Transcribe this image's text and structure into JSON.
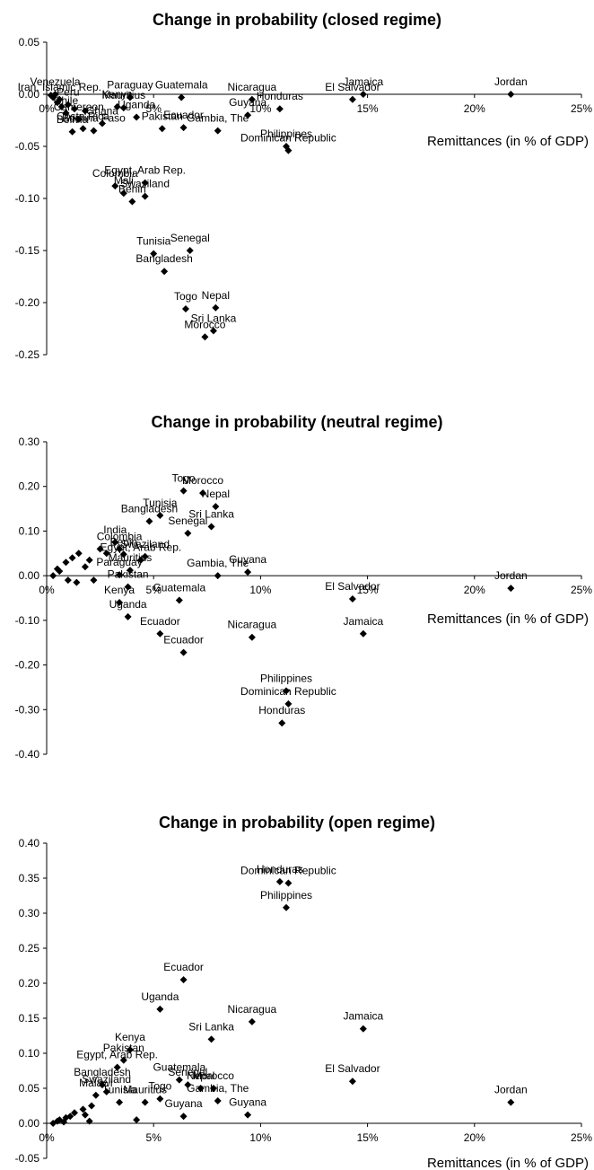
{
  "chart_data": [
    {
      "type": "scatter",
      "title": "Change in probability (closed regime)",
      "xlabel": "Remittances (in % of GDP)",
      "ylabel": "",
      "xlim": [
        0,
        25
      ],
      "ylim": [
        -0.25,
        0.05
      ],
      "x_ticks": [
        "0%",
        "5%",
        "10%",
        "15%",
        "20%",
        "25%"
      ],
      "y_ticks": [
        "0.05",
        "0.00",
        "-0.05",
        "-0.10",
        "-0.15",
        "-0.20",
        "-0.25"
      ],
      "grid": false,
      "legend": "none",
      "marker_color": "#000000",
      "points": [
        {
          "x": 21.7,
          "y": 0.0,
          "label": "Jordan"
        },
        {
          "x": 14.8,
          "y": 0.0,
          "label": "Jamaica"
        },
        {
          "x": 14.3,
          "y": -0.005,
          "label": "El Salvador"
        },
        {
          "x": 9.6,
          "y": -0.005,
          "label": "Nicaragua"
        },
        {
          "x": 10.9,
          "y": -0.014,
          "label": "Honduras"
        },
        {
          "x": 9.4,
          "y": -0.02,
          "label": "Guyana"
        },
        {
          "x": 11.2,
          "y": -0.05,
          "label": "Philippines"
        },
        {
          "x": 11.3,
          "y": -0.054,
          "label": "Dominican Republic"
        },
        {
          "x": 8.0,
          "y": -0.035,
          "label": "Gambia, The"
        },
        {
          "x": 6.3,
          "y": -0.003,
          "label": "Guatemala"
        },
        {
          "x": 3.9,
          "y": -0.003,
          "label": "Paraguay"
        },
        {
          "x": 3.3,
          "y": -0.012,
          "label": "Kenya"
        },
        {
          "x": 3.6,
          "y": -0.013,
          "label": "Mauritius"
        },
        {
          "x": 4.2,
          "y": -0.022,
          "label": "Uganda"
        },
        {
          "x": 6.4,
          "y": -0.032,
          "label": "Ecuador"
        },
        {
          "x": 5.4,
          "y": -0.033,
          "label": "Pakistan"
        },
        {
          "x": 2.2,
          "y": -0.035,
          "label": "Burkina Faso"
        },
        {
          "x": 4.6,
          "y": -0.085,
          "label": "Egypt, Arab Rep."
        },
        {
          "x": 3.2,
          "y": -0.088,
          "label": "Colombia"
        },
        {
          "x": 3.6,
          "y": -0.095,
          "label": "Mali"
        },
        {
          "x": 4.6,
          "y": -0.098,
          "label": "Swaziland"
        },
        {
          "x": 4.0,
          "y": -0.103,
          "label": "Benin"
        },
        {
          "x": 5.0,
          "y": -0.153,
          "label": "Tunisia"
        },
        {
          "x": 6.7,
          "y": -0.15,
          "label": "Senegal"
        },
        {
          "x": 5.5,
          "y": -0.17,
          "label": "Bangladesh"
        },
        {
          "x": 6.5,
          "y": -0.206,
          "label": "Togo"
        },
        {
          "x": 7.9,
          "y": -0.205,
          "label": "Nepal"
        },
        {
          "x": 7.8,
          "y": -0.227,
          "label": "Sri Lanka"
        },
        {
          "x": 7.4,
          "y": -0.233,
          "label": "Morocco"
        },
        {
          "x": 0.4,
          "y": 0.0,
          "label": "Venezuela"
        },
        {
          "x": 0.6,
          "y": -0.005,
          "label": "Iran, Islamic Rep."
        },
        {
          "x": 1.0,
          "y": -0.01,
          "label": "Peru"
        },
        {
          "x": 0.9,
          "y": -0.018,
          "label": "Chile"
        },
        {
          "x": 1.5,
          "y": -0.024,
          "label": "Cameroon"
        },
        {
          "x": 2.6,
          "y": -0.028,
          "label": "Ghana"
        },
        {
          "x": 1.7,
          "y": -0.033,
          "label": "Costa Rica"
        },
        {
          "x": 1.2,
          "y": -0.036,
          "label": "Bolivia"
        },
        {
          "x": 0.3,
          "y": -0.003,
          "label": ""
        },
        {
          "x": 0.5,
          "y": -0.008,
          "label": ""
        },
        {
          "x": 0.7,
          "y": -0.012,
          "label": ""
        },
        {
          "x": 1.3,
          "y": -0.014,
          "label": ""
        },
        {
          "x": 1.8,
          "y": -0.016,
          "label": ""
        },
        {
          "x": 0.2,
          "y": -0.001,
          "label": ""
        }
      ]
    },
    {
      "type": "scatter",
      "title": "Change in probability (neutral regime)",
      "xlabel": "Remittances (in % of GDP)",
      "ylabel": "",
      "xlim": [
        0,
        25
      ],
      "ylim": [
        -0.4,
        0.3
      ],
      "x_ticks": [
        "0%",
        "5%",
        "10%",
        "15%",
        "20%",
        "25%"
      ],
      "y_ticks": [
        "0.30",
        "0.20",
        "0.10",
        "0.00",
        "-0.10",
        "-0.20",
        "-0.30",
        "-0.40"
      ],
      "grid": false,
      "legend": "none",
      "marker_color": "#000000",
      "points": [
        {
          "x": 6.4,
          "y": 0.19,
          "label": "Togo"
        },
        {
          "x": 7.3,
          "y": 0.185,
          "label": "Morocco"
        },
        {
          "x": 7.9,
          "y": 0.155,
          "label": "Nepal"
        },
        {
          "x": 7.7,
          "y": 0.11,
          "label": "Sri Lanka"
        },
        {
          "x": 4.8,
          "y": 0.122,
          "label": "Bangladesh"
        },
        {
          "x": 5.3,
          "y": 0.135,
          "label": "Tunisia"
        },
        {
          "x": 6.6,
          "y": 0.095,
          "label": "Senegal"
        },
        {
          "x": 3.2,
          "y": 0.075,
          "label": "India"
        },
        {
          "x": 3.4,
          "y": 0.06,
          "label": "Colombia"
        },
        {
          "x": 3.6,
          "y": 0.048,
          "label": "Benin"
        },
        {
          "x": 4.6,
          "y": 0.043,
          "label": "Swaziland"
        },
        {
          "x": 3.9,
          "y": 0.012,
          "label": "Mauritius"
        },
        {
          "x": 4.4,
          "y": 0.035,
          "label": "Egypt, Arab Rep."
        },
        {
          "x": 8.0,
          "y": 0.0,
          "label": "Gambia, The"
        },
        {
          "x": 9.4,
          "y": 0.008,
          "label": "Guyana"
        },
        {
          "x": 3.4,
          "y": 0.002,
          "label": "Paraguay"
        },
        {
          "x": 3.8,
          "y": -0.025,
          "label": "Pakistan"
        },
        {
          "x": 6.2,
          "y": -0.055,
          "label": "Guatemala"
        },
        {
          "x": 3.4,
          "y": -0.06,
          "label": "Kenya"
        },
        {
          "x": 3.8,
          "y": -0.092,
          "label": "Uganda"
        },
        {
          "x": 5.3,
          "y": -0.13,
          "label": "Ecuador"
        },
        {
          "x": 6.4,
          "y": -0.172,
          "label": "Ecuador"
        },
        {
          "x": 9.6,
          "y": -0.138,
          "label": "Nicaragua"
        },
        {
          "x": 14.3,
          "y": -0.052,
          "label": "El Salvador"
        },
        {
          "x": 14.8,
          "y": -0.13,
          "label": "Jamaica"
        },
        {
          "x": 21.7,
          "y": -0.028,
          "label": "Jordan"
        },
        {
          "x": 11.2,
          "y": -0.258,
          "label": "Philippines"
        },
        {
          "x": 11.3,
          "y": -0.287,
          "label": "Dominican Republic"
        },
        {
          "x": 11.0,
          "y": -0.33,
          "label": "Honduras"
        },
        {
          "x": 0.3,
          "y": 0.0,
          "label": ""
        },
        {
          "x": 0.6,
          "y": 0.01,
          "label": ""
        },
        {
          "x": 0.9,
          "y": 0.03,
          "label": ""
        },
        {
          "x": 1.2,
          "y": 0.04,
          "label": ""
        },
        {
          "x": 1.5,
          "y": 0.05,
          "label": ""
        },
        {
          "x": 1.8,
          "y": 0.02,
          "label": ""
        },
        {
          "x": 2.2,
          "y": -0.01,
          "label": ""
        },
        {
          "x": 2.5,
          "y": 0.06,
          "label": ""
        },
        {
          "x": 2.8,
          "y": 0.05,
          "label": ""
        },
        {
          "x": 1.0,
          "y": -0.01,
          "label": ""
        },
        {
          "x": 1.4,
          "y": -0.015,
          "label": ""
        },
        {
          "x": 0.5,
          "y": 0.015,
          "label": ""
        },
        {
          "x": 2.0,
          "y": 0.035,
          "label": ""
        }
      ]
    },
    {
      "type": "scatter",
      "title": "Change in probability (open regime)",
      "xlabel": "Remittances (in % of GDP)",
      "ylabel": "",
      "xlim": [
        0,
        25
      ],
      "ylim": [
        -0.05,
        0.4
      ],
      "x_ticks": [
        "0%",
        "5%",
        "10%",
        "15%",
        "20%",
        "25%"
      ],
      "y_ticks": [
        "0.40",
        "0.35",
        "0.30",
        "0.25",
        "0.20",
        "0.15",
        "0.10",
        "0.05",
        "0.00",
        "-0.05"
      ],
      "grid": false,
      "legend": "none",
      "marker_color": "#000000",
      "points": [
        {
          "x": 10.9,
          "y": 0.345,
          "label": "Honduras"
        },
        {
          "x": 11.3,
          "y": 0.343,
          "label": "Dominican Republic"
        },
        {
          "x": 11.2,
          "y": 0.308,
          "label": "Philippines"
        },
        {
          "x": 6.4,
          "y": 0.205,
          "label": "Ecuador"
        },
        {
          "x": 5.3,
          "y": 0.163,
          "label": "Uganda"
        },
        {
          "x": 9.6,
          "y": 0.145,
          "label": "Nicaragua"
        },
        {
          "x": 7.7,
          "y": 0.12,
          "label": "Sri Lanka"
        },
        {
          "x": 14.8,
          "y": 0.135,
          "label": "Jamaica"
        },
        {
          "x": 3.9,
          "y": 0.105,
          "label": "Kenya"
        },
        {
          "x": 3.6,
          "y": 0.09,
          "label": "Pakistan"
        },
        {
          "x": 3.3,
          "y": 0.08,
          "label": "Egypt, Arab Rep."
        },
        {
          "x": 6.2,
          "y": 0.062,
          "label": "Guatemala"
        },
        {
          "x": 6.6,
          "y": 0.055,
          "label": "Senegal"
        },
        {
          "x": 7.2,
          "y": 0.05,
          "label": "Nepal"
        },
        {
          "x": 7.8,
          "y": 0.05,
          "label": "Morocco"
        },
        {
          "x": 5.3,
          "y": 0.035,
          "label": "Togo"
        },
        {
          "x": 8.0,
          "y": 0.032,
          "label": "Gambia, The"
        },
        {
          "x": 9.4,
          "y": 0.012,
          "label": "Guyana"
        },
        {
          "x": 6.4,
          "y": 0.01,
          "label": "Guyana"
        },
        {
          "x": 4.6,
          "y": 0.03,
          "label": "Mauritius"
        },
        {
          "x": 3.4,
          "y": 0.03,
          "label": "Tunisia"
        },
        {
          "x": 4.2,
          "y": 0.005,
          "label": ""
        },
        {
          "x": 14.3,
          "y": 0.06,
          "label": "El Salvador"
        },
        {
          "x": 21.7,
          "y": 0.03,
          "label": "Jordan"
        },
        {
          "x": 2.8,
          "y": 0.045,
          "label": "Swaziland"
        },
        {
          "x": 2.3,
          "y": 0.04,
          "label": "Malawi"
        },
        {
          "x": 2.6,
          "y": 0.055,
          "label": "Bangladesh"
        },
        {
          "x": 0.3,
          "y": 0.0,
          "label": ""
        },
        {
          "x": 0.6,
          "y": 0.005,
          "label": ""
        },
        {
          "x": 0.9,
          "y": 0.008,
          "label": ""
        },
        {
          "x": 1.3,
          "y": 0.015,
          "label": ""
        },
        {
          "x": 1.7,
          "y": 0.02,
          "label": ""
        },
        {
          "x": 2.1,
          "y": 0.025,
          "label": ""
        },
        {
          "x": 0.8,
          "y": 0.002,
          "label": ""
        },
        {
          "x": 1.1,
          "y": 0.01,
          "label": ""
        },
        {
          "x": 1.8,
          "y": 0.012,
          "label": ""
        },
        {
          "x": 2.0,
          "y": 0.003,
          "label": ""
        },
        {
          "x": 0.5,
          "y": 0.003,
          "label": ""
        }
      ]
    }
  ]
}
